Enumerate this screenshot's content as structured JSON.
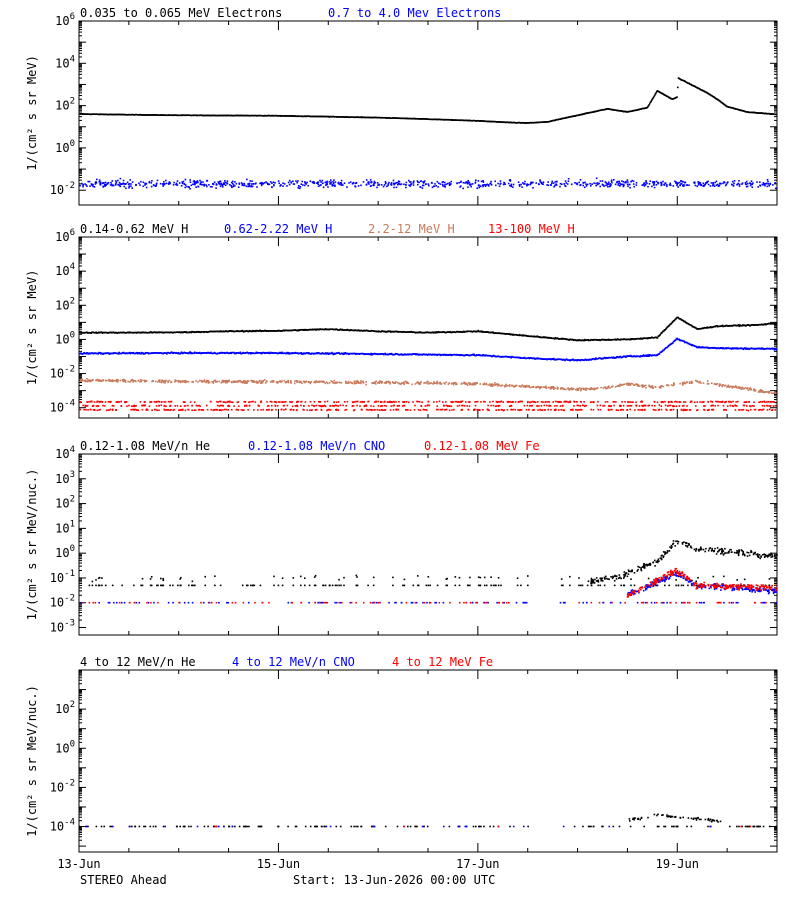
{
  "footer": {
    "spacecraft": "STEREO Ahead",
    "start": "Start: 13-Jun-2026 00:00 UTC"
  },
  "x_axis": {
    "tick_labels": [
      "13-Jun",
      "15-Jun",
      "17-Jun",
      "19-Jun"
    ],
    "tick_days": [
      0,
      2,
      4,
      6
    ],
    "range_days": [
      0,
      7.0
    ]
  },
  "colors": {
    "black": "#000000",
    "blue": "#0000ff",
    "tan": "#c87a5a",
    "red": "#ff0000"
  },
  "chart_data": [
    {
      "type": "scatter",
      "legend": [
        {
          "label": "0.035 to 0.065 MeV Electrons",
          "color": "#000000"
        },
        {
          "label": "0.7 to 4.0 Mev Electrons",
          "color": "#0000ff"
        }
      ],
      "ylabel": "1/(cm² s sr MeV)",
      "yscale": "log",
      "ylim": [
        0.002,
        1000000
      ],
      "y_tick_labels": [
        {
          "exp": -2,
          "text": "10-2"
        },
        {
          "exp": 0,
          "text": "100"
        },
        {
          "exp": 2,
          "text": "102"
        },
        {
          "exp": 4,
          "text": "104"
        },
        {
          "exp": 6,
          "text": "106"
        }
      ],
      "series": [
        {
          "name": "0.035 to 0.065 MeV Electrons",
          "color": "#000000",
          "style": "line",
          "noise": 0.01,
          "x": [
            0,
            0.5,
            1.0,
            1.5,
            2.0,
            2.5,
            3.0,
            3.5,
            4.0,
            4.3,
            4.5,
            4.7,
            5.0,
            5.3,
            5.5,
            5.7,
            5.8,
            5.95,
            6.0,
            6.01,
            6.2,
            6.3,
            6.4,
            6.5,
            6.7,
            7.0
          ],
          "y": [
            40,
            37,
            35,
            34,
            33,
            30,
            27,
            23,
            19,
            16,
            15,
            17,
            35,
            70,
            50,
            80,
            500,
            200,
            250,
            2000,
            700,
            400,
            200,
            90,
            50,
            38
          ]
        },
        {
          "name": "0.7 to 4.0 Mev Electrons",
          "color": "#0000ff",
          "style": "band",
          "density": 900,
          "spread": 0.17,
          "x": [
            0,
            7.0
          ],
          "y": [
            0.02,
            0.02
          ]
        }
      ]
    },
    {
      "type": "scatter",
      "legend": [
        {
          "label": "0.14-0.62 MeV H",
          "color": "#000000"
        },
        {
          "label": "0.62-2.22 MeV H",
          "color": "#0000ff"
        },
        {
          "label": "2.2-12 MeV H",
          "color": "#c87a5a"
        },
        {
          "label": "13-100 MeV H",
          "color": "#ff0000"
        }
      ],
      "ylabel": "1/(cm² s sr MeV)",
      "yscale": "log",
      "ylim": [
        2.5e-05,
        1000000
      ],
      "y_tick_labels": [
        {
          "exp": -4,
          "text": "10-4"
        },
        {
          "exp": -2,
          "text": "10-2"
        },
        {
          "exp": 0,
          "text": "100"
        },
        {
          "exp": 2,
          "text": "102"
        },
        {
          "exp": 4,
          "text": "104"
        },
        {
          "exp": 6,
          "text": "106"
        }
      ],
      "series": [
        {
          "name": "0.14-0.62 MeV H",
          "color": "#000000",
          "style": "line",
          "noise": 0.03,
          "x": [
            0,
            0.5,
            1.0,
            1.5,
            2.0,
            2.5,
            3.0,
            3.5,
            4.0,
            4.5,
            5.0,
            5.5,
            5.8,
            6.0,
            6.2,
            6.4,
            6.8,
            7.0
          ],
          "y": [
            2.5,
            2.5,
            2.6,
            3.0,
            3.2,
            4.0,
            3.0,
            2.5,
            3.0,
            1.6,
            0.9,
            1.0,
            1.3,
            20,
            4.0,
            6.0,
            7.0,
            9.0
          ]
        },
        {
          "name": "0.62-2.22 MeV H",
          "color": "#0000ff",
          "style": "line",
          "noise": 0.04,
          "x": [
            0,
            1.0,
            2.0,
            3.0,
            4.0,
            4.5,
            5.0,
            5.5,
            5.8,
            6.0,
            6.2,
            6.5,
            7.0
          ],
          "y": [
            0.15,
            0.16,
            0.16,
            0.14,
            0.12,
            0.08,
            0.06,
            0.1,
            0.12,
            1.1,
            0.35,
            0.3,
            0.28
          ]
        },
        {
          "name": "2.2-12 MeV H",
          "color": "#c87a5a",
          "style": "band",
          "density": 900,
          "spread": 0.08,
          "x": [
            0,
            1.0,
            2.0,
            3.0,
            4.0,
            5.0,
            5.3,
            5.5,
            5.8,
            6.0,
            6.2,
            6.6,
            7.0
          ],
          "y": [
            0.004,
            0.0035,
            0.0033,
            0.003,
            0.0025,
            0.0012,
            0.0015,
            0.0025,
            0.0015,
            0.0025,
            0.0035,
            0.0015,
            0.0007
          ]
        },
        {
          "name": "13-100 MeV H",
          "color": "#ff0000",
          "style": "levels",
          "density": 1000,
          "spread": 0.03,
          "levels": [
            0.00022,
            0.00013,
            7.5e-05
          ]
        }
      ]
    },
    {
      "type": "scatter",
      "legend": [
        {
          "label": "0.12-1.08 MeV/n He",
          "color": "#000000"
        },
        {
          "label": "0.12-1.08 MeV/n CNO",
          "color": "#0000ff"
        },
        {
          "label": "0.12-1.08 MeV Fe",
          "color": "#ff0000"
        }
      ],
      "ylabel": "1/(cm² s sr MeV/nuc.)",
      "yscale": "log",
      "ylim": [
        0.0005,
        10000
      ],
      "y_tick_labels": [
        {
          "exp": -3,
          "text": "10-3"
        },
        {
          "exp": -2,
          "text": "10-2"
        },
        {
          "exp": -1,
          "text": "10-1"
        },
        {
          "exp": 0,
          "text": "100"
        },
        {
          "exp": 1,
          "text": "101"
        },
        {
          "exp": 2,
          "text": "102"
        },
        {
          "exp": 3,
          "text": "103"
        },
        {
          "exp": 4,
          "text": "104"
        }
      ],
      "series": [
        {
          "name": "0.12-1.08 MeV/n He",
          "color": "#000000",
          "style": "background",
          "base": 0.05,
          "upper": 0.1,
          "count": 160,
          "event_x": [
            5.1,
            5.5,
            5.8,
            6.0,
            6.2,
            6.5,
            7.0
          ],
          "event_y": [
            0.06,
            0.15,
            0.5,
            3.0,
            1.5,
            1.2,
            0.7
          ]
        },
        {
          "name": "0.12-1.08 MeV/n CNO",
          "color": "#0000ff",
          "style": "sparse",
          "base": 0.01,
          "count": 120,
          "event_x": [
            5.5,
            6.0,
            6.2,
            7.0
          ],
          "event_y": [
            0.02,
            0.15,
            0.05,
            0.03
          ]
        },
        {
          "name": "0.12-1.08 MeV Fe",
          "color": "#ff0000",
          "style": "sparse",
          "base": 0.01,
          "count": 90,
          "event_x": [
            5.5,
            6.0,
            6.2,
            7.0
          ],
          "event_y": [
            0.02,
            0.2,
            0.05,
            0.04
          ]
        }
      ]
    },
    {
      "type": "scatter",
      "legend": [
        {
          "label": "4 to 12 MeV/n He",
          "color": "#000000"
        },
        {
          "label": "4 to 12 MeV/n CNO",
          "color": "#0000ff"
        },
        {
          "label": "4 to 12 MeV Fe",
          "color": "#ff0000"
        }
      ],
      "ylabel": "1/(cm² s sr MeV/nuc.)",
      "yscale": "log",
      "ylim": [
        5e-06,
        10000
      ],
      "y_tick_labels": [
        {
          "exp": -4,
          "text": "10-4"
        },
        {
          "exp": -2,
          "text": "10-2"
        },
        {
          "exp": 0,
          "text": "100"
        },
        {
          "exp": 2,
          "text": "102"
        }
      ],
      "series": [
        {
          "name": "4 to 12 MeV/n He",
          "color": "#000000",
          "style": "floor",
          "base": 0.0001,
          "count": 150,
          "event_x": [
            5.5,
            5.8,
            6.0,
            6.4,
            6.5
          ],
          "event_y": [
            0.0002,
            0.0004,
            0.0003,
            0.0002,
            0.00015
          ]
        },
        {
          "name": "4 to 12 MeV/n CNO",
          "color": "#0000ff",
          "style": "sparse",
          "base": 0.0001,
          "count": 25,
          "event_x": [],
          "event_y": []
        },
        {
          "name": "4 to 12 MeV Fe",
          "color": "#ff0000",
          "style": "sparse",
          "base": 0.0001,
          "count": 6,
          "event_x": [],
          "event_y": []
        }
      ]
    }
  ]
}
